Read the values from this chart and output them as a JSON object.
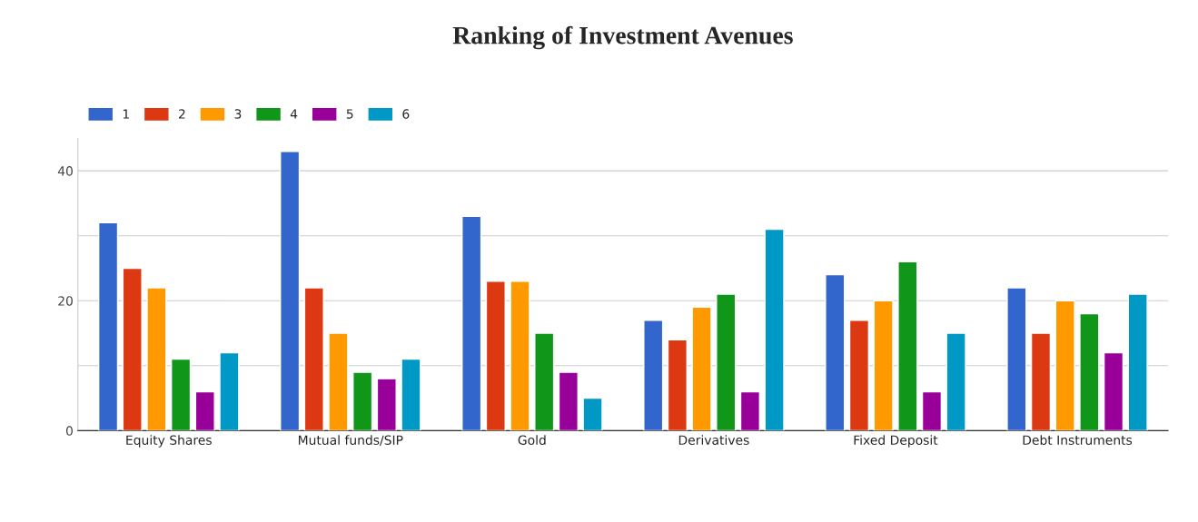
{
  "chart_data": {
    "type": "bar",
    "title": "Ranking of Investment Avenues",
    "categories": [
      "Equity Shares",
      "Mutual funds/SIP",
      "Gold",
      "Derivatives",
      "Fixed Deposit",
      "Debt Instruments"
    ],
    "series": [
      {
        "name": "1",
        "color": "#3366cc",
        "values": [
          32,
          43,
          33,
          17,
          24,
          22
        ]
      },
      {
        "name": "2",
        "color": "#dc3912",
        "values": [
          25,
          22,
          23,
          14,
          17,
          15
        ]
      },
      {
        "name": "3",
        "color": "#ff9900",
        "values": [
          22,
          15,
          23,
          19,
          20,
          20
        ]
      },
      {
        "name": "4",
        "color": "#109618",
        "values": [
          11,
          9,
          15,
          21,
          26,
          18
        ]
      },
      {
        "name": "5",
        "color": "#990099",
        "values": [
          6,
          8,
          9,
          6,
          6,
          12
        ]
      },
      {
        "name": "6",
        "color": "#0099c6",
        "values": [
          12,
          11,
          5,
          31,
          15,
          21
        ]
      }
    ],
    "ylim": [
      0,
      45
    ],
    "yticks": [
      0,
      {
        "value": 10,
        "label": null
      },
      20,
      {
        "value": 30,
        "label": null
      },
      40
    ],
    "grid": "y",
    "legend": "top left"
  }
}
